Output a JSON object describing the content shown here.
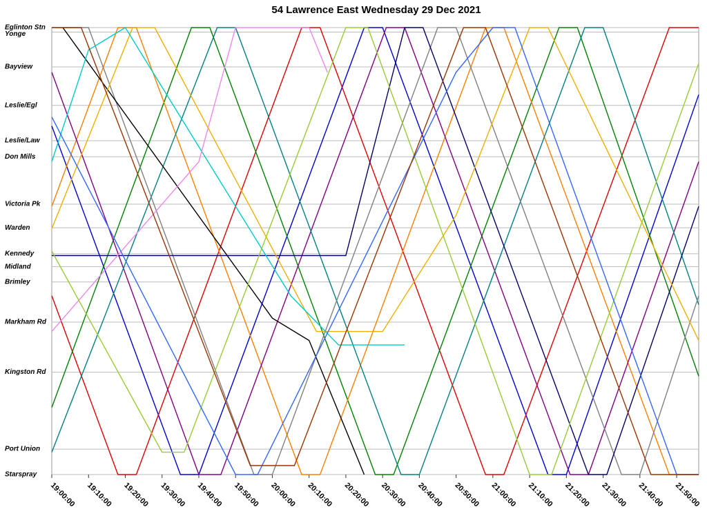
{
  "chart_data": {
    "type": "line",
    "title": "54 Lawrence East Wednesday 29 Dec 2021",
    "xlim": [
      1140,
      1316
    ],
    "xticks": [
      {
        "value": 1140,
        "label": "19:00:00"
      },
      {
        "value": 1150,
        "label": "19:10:00"
      },
      {
        "value": 1160,
        "label": "19:20:00"
      },
      {
        "value": 1170,
        "label": "19:30:00"
      },
      {
        "value": 1180,
        "label": "19:40:00"
      },
      {
        "value": 1190,
        "label": "19:50:00"
      },
      {
        "value": 1200,
        "label": "20:00:00"
      },
      {
        "value": 1210,
        "label": "20:10:00"
      },
      {
        "value": 1220,
        "label": "20:20:00"
      },
      {
        "value": 1230,
        "label": "20:30:00"
      },
      {
        "value": 1240,
        "label": "20:40:00"
      },
      {
        "value": 1250,
        "label": "20:50:00"
      },
      {
        "value": 1260,
        "label": "21:00:00"
      },
      {
        "value": 1270,
        "label": "21:10:00"
      },
      {
        "value": 1280,
        "label": "21:20:00"
      },
      {
        "value": 1290,
        "label": "21:30:00"
      },
      {
        "value": 1300,
        "label": "21:40:00"
      },
      {
        "value": 1310,
        "label": "21:50:00"
      }
    ],
    "ylim": [
      100,
      0
    ],
    "yticks": [
      {
        "value": 0,
        "label": "Eglinton Stn"
      },
      {
        "value": 1,
        "label": "Yonge"
      },
      {
        "value": 8.8,
        "label": "Bayview"
      },
      {
        "value": 17.4,
        "label": "Leslie/Egl"
      },
      {
        "value": 25.3,
        "label": "Leslie/Law"
      },
      {
        "value": 28.9,
        "label": "Don Mills"
      },
      {
        "value": 39.5,
        "label": "Victoria Pk"
      },
      {
        "value": 44.8,
        "label": "Warden"
      },
      {
        "value": 50.6,
        "label": "Kennedy"
      },
      {
        "value": 53.5,
        "label": "Midland"
      },
      {
        "value": 56.9,
        "label": "Brimley"
      },
      {
        "value": 65.9,
        "label": "Markham Rd"
      },
      {
        "value": 77.1,
        "label": "Kingston Rd"
      },
      {
        "value": 94.3,
        "label": "Port Union"
      },
      {
        "value": 100,
        "label": "Starspray"
      }
    ],
    "grid": true,
    "series": [
      {
        "color": "#0000cc",
        "x": [
          1140,
          1175,
          1180,
          1225,
          1230,
          1275,
          1280,
          1316
        ],
        "values": [
          22,
          100,
          100,
          0,
          0,
          100,
          100,
          15
        ]
      },
      {
        "color": "#dd0000",
        "x": [
          1140,
          1158,
          1163,
          1208,
          1213,
          1258,
          1263,
          1308,
          1316
        ],
        "values": [
          60,
          100,
          100,
          0,
          0,
          100,
          100,
          0,
          0
        ]
      },
      {
        "color": "#008000",
        "x": [
          1140,
          1178,
          1183,
          1228,
          1233,
          1278,
          1283,
          1316
        ],
        "values": [
          85,
          0,
          0,
          100,
          100,
          0,
          0,
          78
        ]
      },
      {
        "color": "#ff8000",
        "x": [
          1140,
          1158,
          1163,
          1208,
          1213,
          1258,
          1263,
          1308,
          1316
        ],
        "values": [
          40,
          0,
          0,
          100,
          100,
          0,
          0,
          100,
          100
        ]
      },
      {
        "color": "#800080",
        "x": [
          1140,
          1180,
          1186,
          1231,
          1236,
          1281,
          1286,
          1316
        ],
        "values": [
          10,
          100,
          100,
          0,
          0,
          100,
          100,
          30
        ]
      },
      {
        "color": "#008080",
        "x": [
          1140,
          1185,
          1190,
          1235,
          1240,
          1285,
          1290,
          1316
        ],
        "values": [
          95,
          0,
          0,
          100,
          100,
          0,
          0,
          62
        ]
      },
      {
        "color": "#808080",
        "x": [
          1140,
          1150,
          1195,
          1200,
          1245,
          1250,
          1295,
          1300,
          1316
        ],
        "values": [
          0,
          0,
          100,
          100,
          0,
          0,
          100,
          100,
          60
        ]
      },
      {
        "color": "#000000",
        "x": [
          1143,
          1200,
          1210,
          1225
        ],
        "values": [
          0,
          65,
          70,
          100
        ]
      },
      {
        "color": "#000066",
        "x": [
          1140,
          1220,
          1236,
          1241,
          1286,
          1291,
          1316
        ],
        "values": [
          51,
          51,
          0,
          0,
          100,
          100,
          40
        ]
      },
      {
        "color": "#f0b000",
        "x": [
          1140,
          1162,
          1168,
          1212,
          1230,
          1250,
          1270,
          1275,
          1316
        ],
        "values": [
          45,
          0,
          0,
          68,
          68,
          42,
          0,
          0,
          70
        ]
      },
      {
        "color": "#00cccc",
        "x": [
          1140,
          1150,
          1160,
          1205,
          1218,
          1236
        ],
        "values": [
          30,
          5,
          0,
          60,
          71,
          71
        ]
      },
      {
        "color": "#ee88ee",
        "x": [
          1140,
          1180,
          1190,
          1210,
          1215
        ],
        "values": [
          68,
          30,
          0,
          0,
          10
        ]
      },
      {
        "color": "#99cc33",
        "x": [
          1140,
          1170,
          1176,
          1220,
          1226,
          1270,
          1276,
          1316
        ],
        "values": [
          50,
          95,
          95,
          0,
          0,
          100,
          100,
          8
        ]
      },
      {
        "color": "#3366ff",
        "x": [
          1140,
          1190,
          1196,
          1250,
          1260,
          1266,
          1310,
          1316
        ],
        "values": [
          20,
          100,
          100,
          10,
          0,
          0,
          100,
          100
        ]
      },
      {
        "color": "#993300",
        "x": [
          1140,
          1148,
          1194,
          1206,
          1252,
          1258,
          1303,
          1316
        ],
        "values": [
          0,
          0,
          98,
          98,
          0,
          0,
          100,
          100
        ]
      }
    ]
  }
}
